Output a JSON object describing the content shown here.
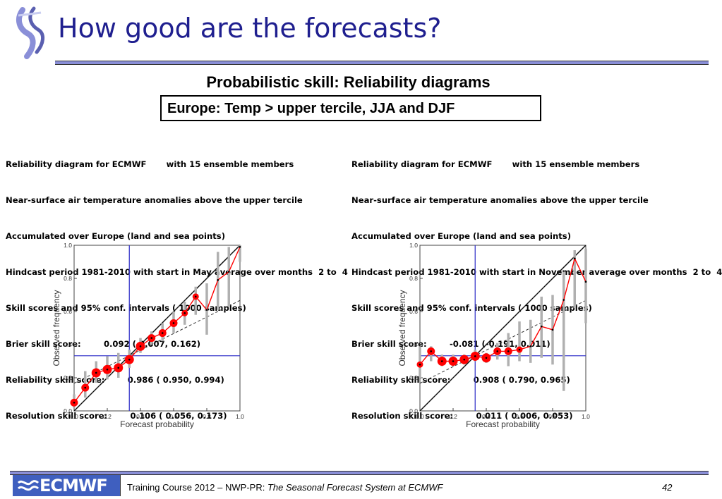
{
  "header": {
    "title": "How good are the forecasts?"
  },
  "subtitle": "Probabilistic skill:  Reliability diagrams",
  "boxed_label": "Europe: Temp > upper tercile,  JJA  and DJF",
  "panels": [
    {
      "lines": [
        "Reliability diagram for ECMWF       with 15 ensemble members",
        "Near-surface air temperature anomalies above the upper tercile",
        "Accumulated over Europe (land and sea points)",
        "Hindcast period 1981-2010 with start in May average over months  2 to  4",
        "Skill scores and 95% conf. intervals ( 1000 samples)",
        "Brier skill score:        0.092 ( 0.007, 0.162)",
        "Reliability skill score:        0.986 ( 0.950, 0.994)",
        "Resolution skill score:        0.106 ( 0.056, 0.173)"
      ]
    },
    {
      "lines": [
        "Reliability diagram for ECMWF       with 15 ensemble members",
        "Near-surface air temperature anomalies above the upper tercile",
        "Accumulated over Europe (land and sea points)",
        "Hindcast period 1981-2010 with start in November average over months  2 to  4",
        "Skill scores and 95% conf. intervals ( 1000 samples)",
        "Brier skill score:        -0.081 (-0.191, 0.011)",
        "Reliability skill score:        0.908 ( 0.790, 0.965)",
        "Resolution skill score:        0.011 ( 0.006, 0.053)"
      ]
    }
  ],
  "chart_data": [
    {
      "type": "scatter",
      "title": "",
      "xlabel": "Forecast probability",
      "ylabel": "Observed frequency",
      "xlim": [
        0,
        1
      ],
      "ylim": [
        0,
        1
      ],
      "xticks": [
        "0.0",
        "0.2",
        "0.4",
        "0.6",
        "0.8",
        "1.0"
      ],
      "yticks": [
        "0.0",
        "0.2",
        "0.4",
        "0.6",
        "0.8",
        "1.0"
      ],
      "climatology": 0.333,
      "skill_line": {
        "x": [
          0,
          1
        ],
        "y": [
          0.167,
          0.667
        ]
      },
      "series": [
        {
          "x": [
            0.0,
            0.067,
            0.133,
            0.2,
            0.267,
            0.333,
            0.4,
            0.467,
            0.533,
            0.6,
            0.667,
            0.733,
            0.8,
            0.867,
            0.933,
            1.0
          ],
          "y": [
            0.05,
            0.14,
            0.23,
            0.25,
            0.26,
            0.31,
            0.39,
            0.44,
            0.47,
            0.53,
            0.59,
            0.69,
            0.61,
            0.79,
            0.84,
            0.99
          ],
          "marker_size": [
            3,
            3,
            4,
            4,
            4,
            4,
            4,
            3,
            3,
            3,
            2,
            2,
            1,
            1,
            1,
            1
          ],
          "ci_low": [
            0.02,
            0.08,
            0.17,
            0.19,
            0.2,
            0.26,
            0.35,
            0.4,
            0.42,
            0.47,
            0.52,
            0.58,
            0.46,
            0.61,
            0.63,
            0.9
          ],
          "ci_high": [
            0.1,
            0.24,
            0.3,
            0.33,
            0.35,
            0.37,
            0.44,
            0.48,
            0.53,
            0.6,
            0.66,
            0.75,
            0.77,
            0.96,
            0.99,
            1.0
          ]
        }
      ],
      "grid": false
    },
    {
      "type": "scatter",
      "title": "",
      "xlabel": "Forecast probability",
      "ylabel": "Observed frequency",
      "xlim": [
        0,
        1
      ],
      "ylim": [
        0,
        1
      ],
      "xticks": [
        "0.0",
        "0.2",
        "0.4",
        "0.6",
        "0.8",
        "1.0"
      ],
      "yticks": [
        "0.0",
        "0.2",
        "0.4",
        "0.6",
        "0.8",
        "1.0"
      ],
      "climatology": 0.333,
      "skill_line": {
        "x": [
          0,
          1
        ],
        "y": [
          0.167,
          0.667
        ]
      },
      "series": [
        {
          "x": [
            0.0,
            0.067,
            0.133,
            0.2,
            0.267,
            0.333,
            0.4,
            0.467,
            0.533,
            0.6,
            0.667,
            0.733,
            0.8,
            0.867,
            0.933,
            1.0
          ],
          "y": [
            0.28,
            0.36,
            0.3,
            0.3,
            0.31,
            0.33,
            0.32,
            0.36,
            0.36,
            0.37,
            0.39,
            0.51,
            0.49,
            0.67,
            0.92,
            0.78
          ],
          "marker_size": [
            2,
            3,
            4,
            4,
            4,
            4,
            4,
            3,
            3,
            2,
            1,
            1,
            1,
            1,
            1,
            1
          ],
          "ci_low": [
            0.2,
            0.3,
            0.27,
            0.27,
            0.28,
            0.3,
            0.29,
            0.31,
            0.27,
            0.3,
            0.29,
            0.32,
            0.28,
            0.12,
            0.62,
            0.53
          ],
          "ci_high": [
            0.39,
            0.39,
            0.34,
            0.34,
            0.34,
            0.37,
            0.35,
            0.41,
            0.47,
            0.54,
            0.55,
            0.69,
            0.7,
            0.84,
            0.97,
            0.98
          ]
        }
      ],
      "grid": false
    }
  ],
  "footer": {
    "logo_text": "ECMWF",
    "course": "Training Course 2012 – NWP-PR: ",
    "course_italic": "The Seasonal Forecast System at ECMWF",
    "page_number": "42"
  },
  "colors": {
    "title": "#1f1f8f",
    "rule": "#8a8fd8",
    "logo_bg": "#3f5fbf",
    "marker": "#ff0000",
    "reference_line": "#3b3bcc",
    "ci_bar": "#b0b0b0"
  }
}
